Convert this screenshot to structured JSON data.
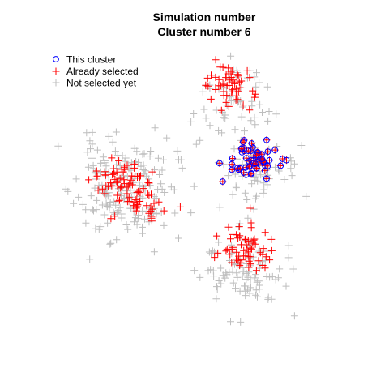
{
  "chart_data": {
    "type": "scatter",
    "title_lines": [
      "Simulation number",
      "Cluster number 6"
    ],
    "xlabel": "",
    "ylabel": "",
    "xlim": [
      0,
      100
    ],
    "ylim": [
      0,
      100
    ],
    "axes_visible": false,
    "grid": false,
    "legend": {
      "position": "top-left",
      "entries": [
        {
          "label": "This cluster",
          "marker": "circle-open",
          "color": "#0000FF"
        },
        {
          "label": "Already selected",
          "marker": "plus",
          "color": "#FF0000"
        },
        {
          "label": "Not selected yet",
          "marker": "plus",
          "color": "#BEBEBE"
        }
      ]
    },
    "series": [
      {
        "name": "Not selected yet",
        "marker": "plus",
        "color": "#BEBEBE",
        "blobs": [
          {
            "cx": 26,
            "cy": 52,
            "sx": 8.5,
            "sy": 8.5,
            "n": 190,
            "seed": 11
          },
          {
            "cx": 63,
            "cy": 82,
            "sx": 6.5,
            "sy": 6.5,
            "n": 55,
            "seed": 12
          },
          {
            "cx": 69,
            "cy": 58,
            "sx": 7.5,
            "sy": 6.5,
            "n": 70,
            "seed": 13
          },
          {
            "cx": 67,
            "cy": 24,
            "sx": 7.0,
            "sy": 6.5,
            "n": 100,
            "seed": 14
          }
        ]
      },
      {
        "name": "Already selected",
        "marker": "plus",
        "color": "#FF0000",
        "blobs": [
          {
            "cx": 24,
            "cy": 56,
            "sx": 4.5,
            "sy": 3.5,
            "n": 45,
            "seed": 21
          },
          {
            "cx": 31,
            "cy": 49,
            "sx": 4.5,
            "sy": 3.5,
            "n": 45,
            "seed": 22
          },
          {
            "cx": 61,
            "cy": 87,
            "sx": 4.5,
            "sy": 4.5,
            "n": 55,
            "seed": 23
          },
          {
            "cx": 67,
            "cy": 31,
            "sx": 5.0,
            "sy": 4.5,
            "n": 60,
            "seed": 24
          }
        ]
      },
      {
        "name": "This cluster",
        "marker": "circle-open",
        "color": "#0000FF",
        "blobs": [
          {
            "cx": 70,
            "cy": 62,
            "sx": 4.0,
            "sy": 3.2,
            "n": 60,
            "seed": 31
          }
        ]
      }
    ]
  }
}
